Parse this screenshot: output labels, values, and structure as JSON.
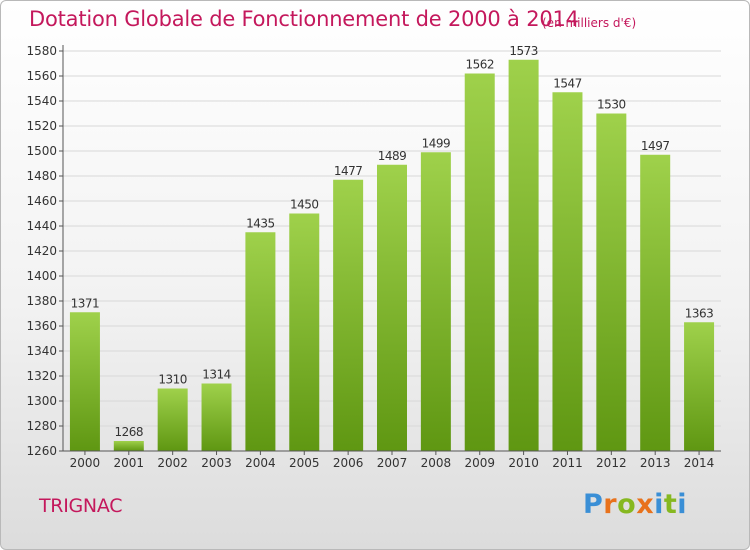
{
  "header": {
    "title": "Dotation Globale de Fonctionnement de 2000 à 2014",
    "unit": "(en milliers d'€)"
  },
  "footer": {
    "commune": "TRIGNAC",
    "logo_letters": [
      "P",
      "r",
      "o",
      "x",
      "i",
      "t",
      "i"
    ],
    "logo_colors": [
      "#3a8fd6",
      "#e8721c",
      "#86b820",
      "#e8721c",
      "#3a8fd6",
      "#86b820",
      "#3a8fd6"
    ]
  },
  "colors": {
    "title": "#c4185c",
    "bar_light": "#9fd14b",
    "bar_dark": "#5f9712",
    "grid": "#d8d8d8"
  },
  "chart_data": {
    "type": "bar",
    "categories": [
      "2000",
      "2001",
      "2002",
      "2003",
      "2004",
      "2005",
      "2006",
      "2007",
      "2008",
      "2009",
      "2010",
      "2011",
      "2012",
      "2013",
      "2014"
    ],
    "values": [
      1371,
      1268,
      1310,
      1314,
      1435,
      1450,
      1477,
      1489,
      1499,
      1562,
      1573,
      1547,
      1530,
      1497,
      1363
    ],
    "title": "Dotation Globale de Fonctionnement de 2000 à 2014",
    "xlabel": "",
    "ylabel": "",
    "ylim": [
      1260,
      1580
    ],
    "yticks": [
      1260,
      1280,
      1300,
      1320,
      1340,
      1360,
      1380,
      1400,
      1420,
      1440,
      1460,
      1480,
      1500,
      1520,
      1540,
      1560,
      1580
    ],
    "grid": true,
    "data_labels": true
  }
}
